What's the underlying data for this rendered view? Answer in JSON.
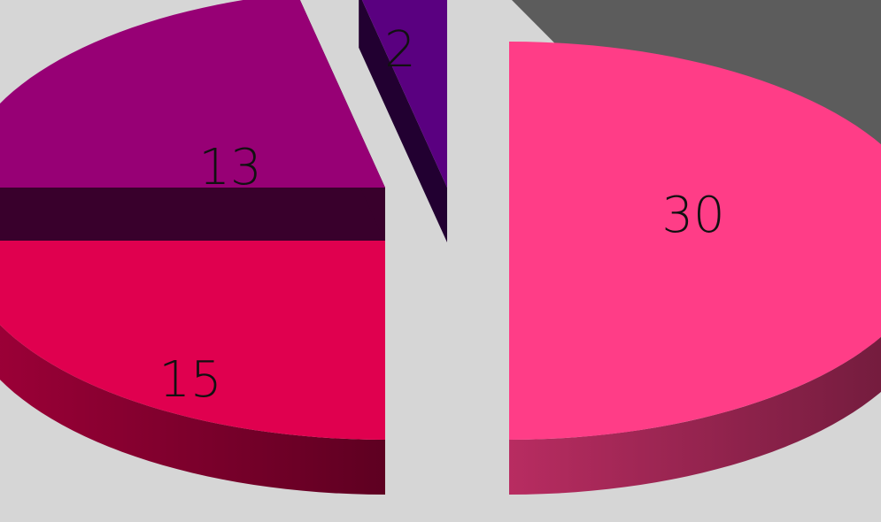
{
  "chart_data": {
    "type": "pie",
    "style": "3d-exploded",
    "categories": [
      "",
      "",
      "",
      ""
    ],
    "values": [
      30,
      15,
      13,
      2
    ],
    "data_labels": [
      "30",
      "15",
      "13",
      "2"
    ],
    "colors": [
      "#ff3d87",
      "#e0004f",
      "#970075",
      "#5a0080"
    ],
    "title": "",
    "legend": "none"
  }
}
